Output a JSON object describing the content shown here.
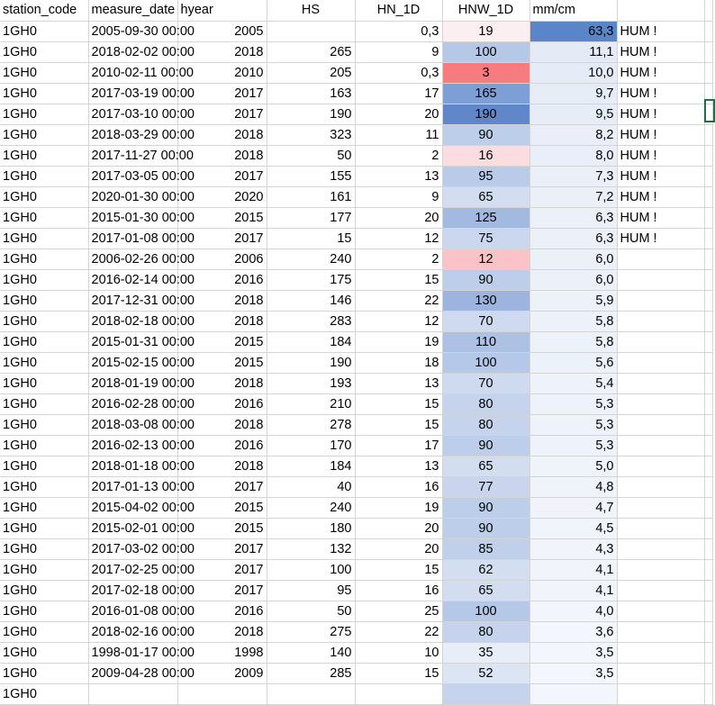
{
  "headers": [
    "station_code",
    "measure_date",
    "hyear",
    "HS",
    "HN_1D",
    "HNW_1D",
    "mm/cm",
    "",
    ""
  ],
  "rows": [
    {
      "station": "1GH0",
      "date": "2005-09-30 00:00",
      "hyear": "2005",
      "hs": "",
      "hn": "0,3",
      "hnw": "19",
      "mmcm": "63,3",
      "note": "HUM !",
      "hnw_color": "#fbeff1",
      "mmcm_color": "#5a86c9"
    },
    {
      "station": "1GH0",
      "date": "2018-02-02 00:00",
      "hyear": "2018",
      "hs": "265",
      "hn": "9",
      "hnw": "100",
      "mmcm": "11,1",
      "note": "HUM !",
      "hnw_color": "#b6c8e7",
      "mmcm_color": "#e5ebf6"
    },
    {
      "station": "1GH0",
      "date": "2010-02-11 00:00",
      "hyear": "2010",
      "hs": "205",
      "hn": "0,3",
      "hnw": "3",
      "mmcm": "10,0",
      "note": "HUM !",
      "hnw_color": "#f67c80",
      "mmcm_color": "#e6ecf7"
    },
    {
      "station": "1GH0",
      "date": "2017-03-19 00:00",
      "hyear": "2017",
      "hs": "163",
      "hn": "17",
      "hnw": "165",
      "mmcm": "9,7",
      "note": "HUM !",
      "hnw_color": "#7e9fd5",
      "mmcm_color": "#e7edf7"
    },
    {
      "station": "1GH0",
      "date": "2017-03-10 00:00",
      "hyear": "2017",
      "hs": "190",
      "hn": "20",
      "hnw": "190",
      "mmcm": "9,5",
      "note": "HUM !",
      "hnw_color": "#5f87c9",
      "mmcm_color": "#e7edf7"
    },
    {
      "station": "1GH0",
      "date": "2018-03-29 00:00",
      "hyear": "2018",
      "hs": "323",
      "hn": "11",
      "hnw": "90",
      "mmcm": "8,2",
      "note": "HUM !",
      "hnw_color": "#bccee9",
      "mmcm_color": "#e9eef8"
    },
    {
      "station": "1GH0",
      "date": "2017-11-27 00:00",
      "hyear": "2018",
      "hs": "50",
      "hn": "2",
      "hnw": "16",
      "mmcm": "8,0",
      "note": "HUM !",
      "hnw_color": "#fbdcdf",
      "mmcm_color": "#e9eef8"
    },
    {
      "station": "1GH0",
      "date": "2017-03-05 00:00",
      "hyear": "2017",
      "hs": "155",
      "hn": "13",
      "hnw": "95",
      "mmcm": "7,3",
      "note": "HUM !",
      "hnw_color": "#b9cbe8",
      "mmcm_color": "#eaeff8"
    },
    {
      "station": "1GH0",
      "date": "2020-01-30 00:00",
      "hyear": "2020",
      "hs": "161",
      "hn": "9",
      "hnw": "65",
      "mmcm": "7,2",
      "note": "HUM !",
      "hnw_color": "#d2ddf0",
      "mmcm_color": "#eaeff8"
    },
    {
      "station": "1GH0",
      "date": "2015-01-30 00:00",
      "hyear": "2015",
      "hs": "177",
      "hn": "20",
      "hnw": "125",
      "mmcm": "6,3",
      "note": "HUM !",
      "hnw_color": "#a2b9e0",
      "mmcm_color": "#ecf0f9"
    },
    {
      "station": "1GH0",
      "date": "2017-01-08 00:00",
      "hyear": "2017",
      "hs": "15",
      "hn": "12",
      "hnw": "75",
      "mmcm": "6,3",
      "note": "HUM !",
      "hnw_color": "#cad7ee",
      "mmcm_color": "#ecf0f9"
    },
    {
      "station": "1GH0",
      "date": "2006-02-26 00:00",
      "hyear": "2006",
      "hs": "240",
      "hn": "2",
      "hnw": "12",
      "mmcm": "6,0",
      "note": "",
      "hnw_color": "#fac3c7",
      "mmcm_color": "#ecf1f9"
    },
    {
      "station": "1GH0",
      "date": "2016-02-14 00:00",
      "hyear": "2016",
      "hs": "175",
      "hn": "15",
      "hnw": "90",
      "mmcm": "6,0",
      "note": "",
      "hnw_color": "#bccee9",
      "mmcm_color": "#ecf1f9"
    },
    {
      "station": "1GH0",
      "date": "2017-12-31 00:00",
      "hyear": "2018",
      "hs": "146",
      "hn": "22",
      "hnw": "130",
      "mmcm": "5,9",
      "note": "",
      "hnw_color": "#9db5de",
      "mmcm_color": "#edf1f9"
    },
    {
      "station": "1GH0",
      "date": "2018-02-18 00:00",
      "hyear": "2018",
      "hs": "283",
      "hn": "12",
      "hnw": "70",
      "mmcm": "5,8",
      "note": "",
      "hnw_color": "#ceda ef",
      "mmcm_color": "#edf1f9"
    },
    {
      "station": "1GH0",
      "date": "2015-01-31 00:00",
      "hyear": "2015",
      "hs": "184",
      "hn": "19",
      "hnw": "110",
      "mmcm": "5,8",
      "note": "",
      "hnw_color": "#adc1e4",
      "mmcm_color": "#edf1f9"
    },
    {
      "station": "1GH0",
      "date": "2015-02-15 00:00",
      "hyear": "2015",
      "hs": "190",
      "hn": "18",
      "hnw": "100",
      "mmcm": "5,6",
      "note": "",
      "hnw_color": "#b6c8e7",
      "mmcm_color": "#edf1f9"
    },
    {
      "station": "1GH0",
      "date": "2018-01-19 00:00",
      "hyear": "2018",
      "hs": "193",
      "hn": "13",
      "hnw": "70",
      "mmcm": "5,4",
      "note": "",
      "hnw_color": "#cedaef",
      "mmcm_color": "#eef2fa"
    },
    {
      "station": "1GH0",
      "date": "2016-02-28 00:00",
      "hyear": "2016",
      "hs": "210",
      "hn": "15",
      "hnw": "80",
      "mmcm": "5,3",
      "note": "",
      "hnw_color": "#c5d3ec",
      "mmcm_color": "#eef2fa"
    },
    {
      "station": "1GH0",
      "date": "2018-03-08 00:00",
      "hyear": "2018",
      "hs": "278",
      "hn": "15",
      "hnw": "80",
      "mmcm": "5,3",
      "note": "",
      "hnw_color": "#c5d3ec",
      "mmcm_color": "#eef2fa"
    },
    {
      "station": "1GH0",
      "date": "2016-02-13 00:00",
      "hyear": "2016",
      "hs": "170",
      "hn": "17",
      "hnw": "90",
      "mmcm": "5,3",
      "note": "",
      "hnw_color": "#bccee9",
      "mmcm_color": "#eef2fa"
    },
    {
      "station": "1GH0",
      "date": "2018-01-18 00:00",
      "hyear": "2018",
      "hs": "184",
      "hn": "13",
      "hnw": "65",
      "mmcm": "5,0",
      "note": "",
      "hnw_color": "#d2ddf0",
      "mmcm_color": "#eff3fa"
    },
    {
      "station": "1GH0",
      "date": "2017-01-13 00:00",
      "hyear": "2017",
      "hs": "40",
      "hn": "16",
      "hnw": "77",
      "mmcm": "4,8",
      "note": "",
      "hnw_color": "#c8d5ed",
      "mmcm_color": "#eff3fa"
    },
    {
      "station": "1GH0",
      "date": "2015-04-02 00:00",
      "hyear": "2015",
      "hs": "240",
      "hn": "19",
      "hnw": "90",
      "mmcm": "4,7",
      "note": "",
      "hnw_color": "#bccee9",
      "mmcm_color": "#f0f3fa"
    },
    {
      "station": "1GH0",
      "date": "2015-02-01 00:00",
      "hyear": "2015",
      "hs": "180",
      "hn": "20",
      "hnw": "90",
      "mmcm": "4,5",
      "note": "",
      "hnw_color": "#bccee9",
      "mmcm_color": "#f0f4fb"
    },
    {
      "station": "1GH0",
      "date": "2017-03-02 00:00",
      "hyear": "2017",
      "hs": "132",
      "hn": "20",
      "hnw": "85",
      "mmcm": "4,3",
      "note": "",
      "hnw_color": "#c0d0ea",
      "mmcm_color": "#f1f4fb"
    },
    {
      "station": "1GH0",
      "date": "2017-02-25 00:00",
      "hyear": "2017",
      "hs": "100",
      "hn": "15",
      "hnw": "62",
      "mmcm": "4,1",
      "note": "",
      "hnw_color": "#d4def1",
      "mmcm_color": "#f1f5fb"
    },
    {
      "station": "1GH0",
      "date": "2017-02-18 00:00",
      "hyear": "2017",
      "hs": "95",
      "hn": "16",
      "hnw": "65",
      "mmcm": "4,1",
      "note": "",
      "hnw_color": "#d2ddf0",
      "mmcm_color": "#f1f5fb"
    },
    {
      "station": "1GH0",
      "date": "2016-01-08 00:00",
      "hyear": "2016",
      "hs": "50",
      "hn": "25",
      "hnw": "100",
      "mmcm": "4,0",
      "note": "",
      "hnw_color": "#b6c8e7",
      "mmcm_color": "#f2f5fb"
    },
    {
      "station": "1GH0",
      "date": "2018-02-16 00:00",
      "hyear": "2018",
      "hs": "275",
      "hn": "22",
      "hnw": "80",
      "mmcm": "3,6",
      "note": "",
      "hnw_color": "#c5d3ec",
      "mmcm_color": "#f3f6fc"
    },
    {
      "station": "1GH0",
      "date": "1998-01-17 00:00",
      "hyear": "1998",
      "hs": "140",
      "hn": "10",
      "hnw": "35",
      "mmcm": "3,5",
      "note": "",
      "hnw_color": "#e8eef8",
      "mmcm_color": "#f3f6fc"
    },
    {
      "station": "1GH0",
      "date": "2009-04-28 00:00",
      "hyear": "2009",
      "hs": "285",
      "hn": "15",
      "hnw": "52",
      "mmcm": "3,5",
      "note": "",
      "hnw_color": "#dce5f4",
      "mmcm_color": "#f3f6fc"
    },
    {
      "station": "1GH0",
      "date": "",
      "hyear": "",
      "hs": "",
      "hn": "",
      "hnw": "",
      "mmcm": "",
      "note": "",
      "hnw_color": "#c5d3ec",
      "mmcm_color": "#f3f6fc"
    }
  ],
  "colors": {
    "grid": "#d4d4d4",
    "selection": "#1f7145"
  }
}
